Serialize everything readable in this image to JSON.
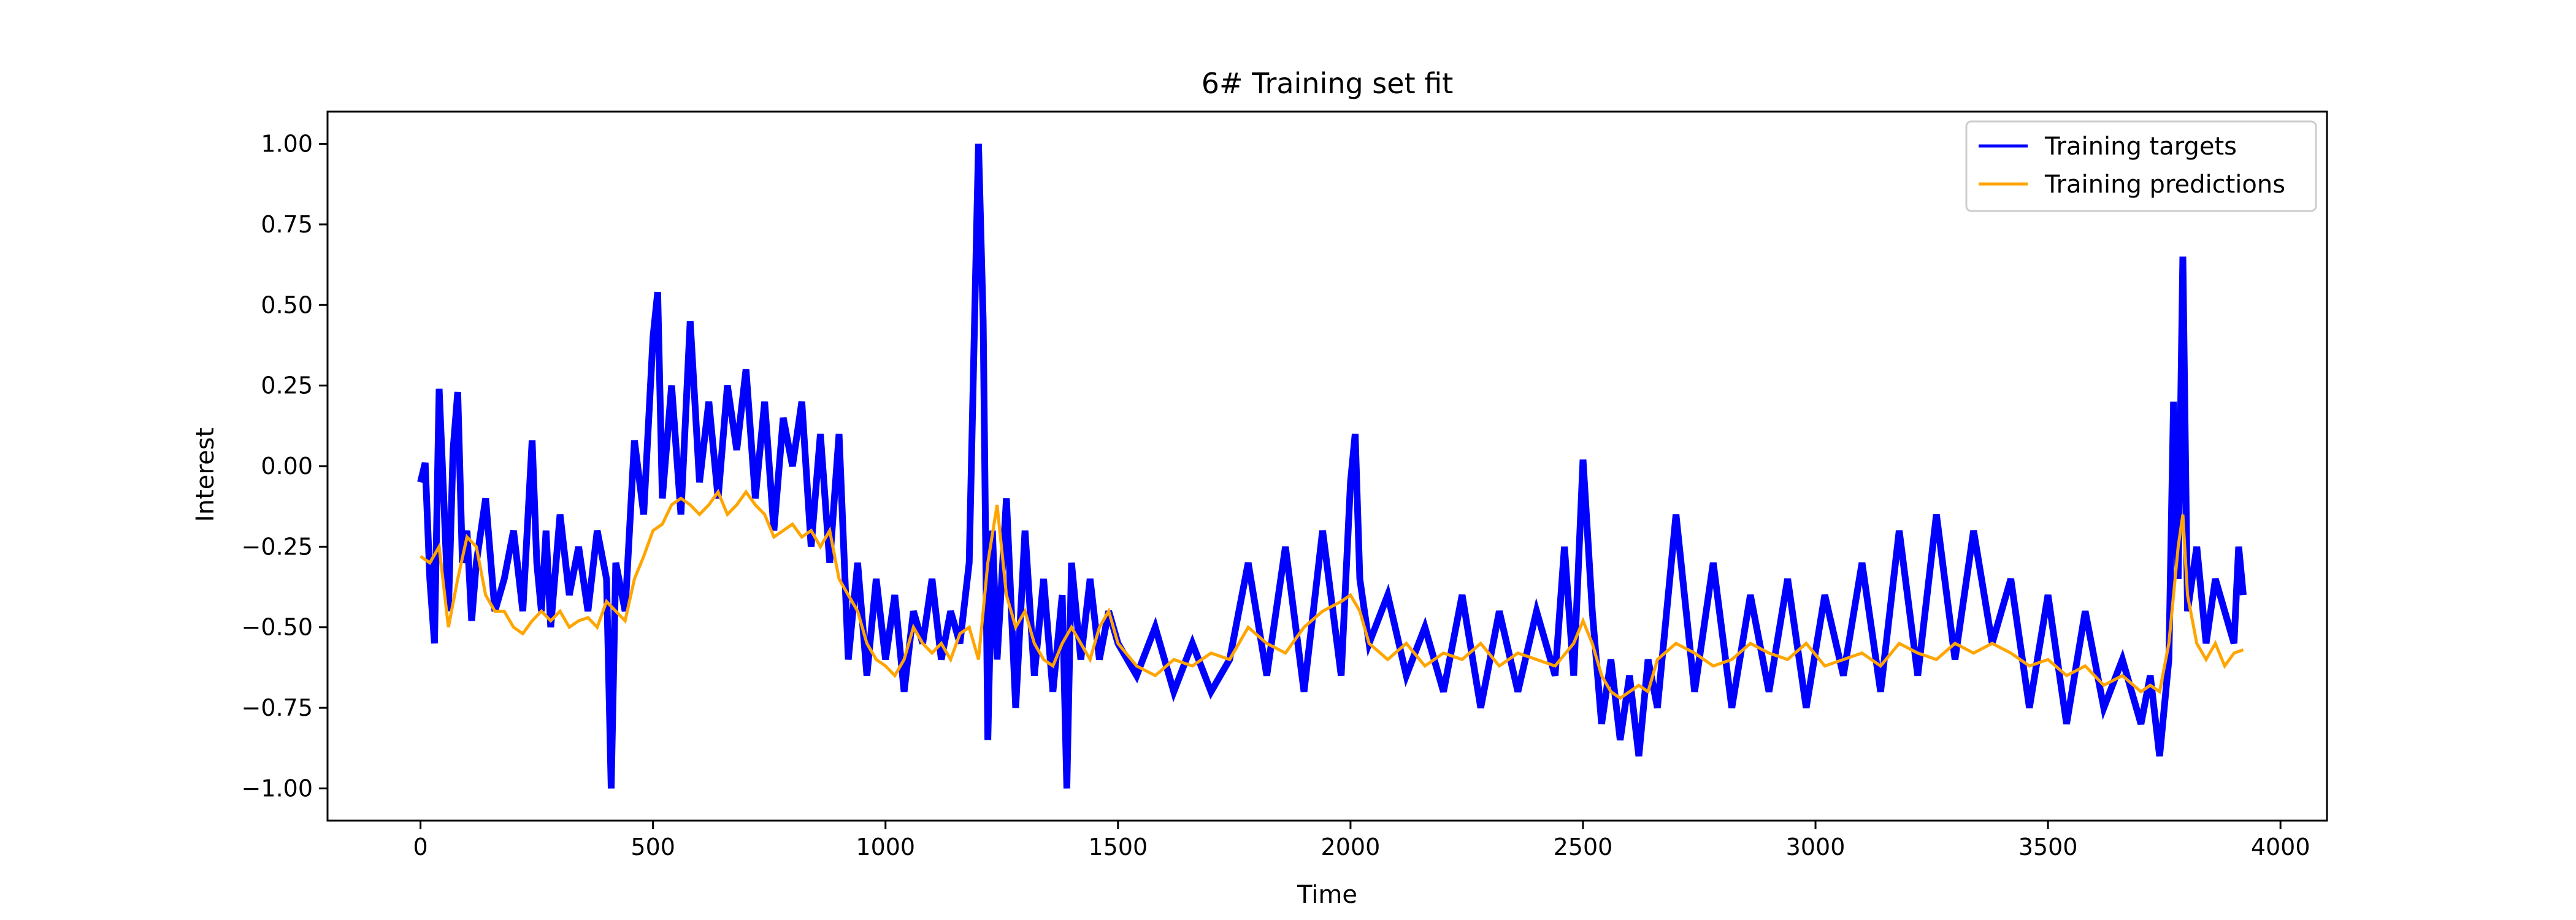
{
  "chart_data": {
    "type": "line",
    "title": "6# Training set fit",
    "xlabel": "Time",
    "ylabel": "Interest",
    "xlim": [
      -200,
      4100
    ],
    "ylim": [
      -1.1,
      1.1
    ],
    "xticks": [
      0,
      500,
      1000,
      1500,
      2000,
      2500,
      3000,
      3500,
      4000
    ],
    "yticks": [
      1.0,
      0.75,
      0.5,
      0.25,
      0.0,
      -0.25,
      -0.5,
      -0.75,
      -1.0
    ],
    "xtick_labels": [
      "0",
      "500",
      "1000",
      "1500",
      "2000",
      "2500",
      "3000",
      "3500",
      "4000"
    ],
    "ytick_labels": [
      "1.00",
      "0.75",
      "0.50",
      "0.25",
      "0.00",
      "−0.25",
      "−0.50",
      "−0.75",
      "−1.00"
    ],
    "grid": false,
    "legend_position": "top-right",
    "series": [
      {
        "name": "Training targets",
        "color": "#0000ff",
        "x": [
          0,
          10,
          20,
          30,
          40,
          50,
          60,
          70,
          80,
          90,
          100,
          110,
          120,
          140,
          160,
          180,
          200,
          220,
          240,
          250,
          260,
          270,
          280,
          300,
          320,
          340,
          360,
          380,
          400,
          410,
          420,
          440,
          460,
          480,
          500,
          510,
          520,
          540,
          560,
          580,
          600,
          620,
          640,
          660,
          680,
          700,
          720,
          740,
          760,
          780,
          800,
          820,
          840,
          860,
          880,
          900,
          920,
          940,
          960,
          980,
          1000,
          1020,
          1040,
          1060,
          1080,
          1100,
          1120,
          1140,
          1160,
          1180,
          1200,
          1210,
          1220,
          1230,
          1240,
          1260,
          1280,
          1300,
          1320,
          1340,
          1360,
          1380,
          1390,
          1400,
          1420,
          1440,
          1460,
          1480,
          1500,
          1540,
          1580,
          1620,
          1660,
          1700,
          1740,
          1780,
          1820,
          1860,
          1900,
          1940,
          1980,
          2000,
          2010,
          2020,
          2040,
          2080,
          2120,
          2160,
          2200,
          2240,
          2280,
          2320,
          2360,
          2400,
          2440,
          2460,
          2480,
          2500,
          2520,
          2540,
          2560,
          2580,
          2600,
          2620,
          2640,
          2660,
          2700,
          2740,
          2780,
          2820,
          2860,
          2900,
          2940,
          2980,
          3020,
          3060,
          3100,
          3140,
          3180,
          3220,
          3260,
          3300,
          3340,
          3380,
          3420,
          3460,
          3500,
          3540,
          3580,
          3620,
          3660,
          3700,
          3720,
          3740,
          3760,
          3770,
          3780,
          3790,
          3800,
          3820,
          3840,
          3860,
          3880,
          3900,
          3910,
          3920
        ],
        "y": [
          -0.05,
          0.01,
          -0.35,
          -0.55,
          0.24,
          -0.1,
          -0.45,
          0.05,
          0.23,
          -0.3,
          -0.2,
          -0.48,
          -0.3,
          -0.1,
          -0.45,
          -0.35,
          -0.2,
          -0.45,
          0.08,
          -0.3,
          -0.45,
          -0.2,
          -0.5,
          -0.15,
          -0.4,
          -0.25,
          -0.45,
          -0.2,
          -0.35,
          -1.0,
          -0.3,
          -0.45,
          0.08,
          -0.15,
          0.4,
          0.54,
          -0.1,
          0.25,
          -0.15,
          0.45,
          -0.05,
          0.2,
          -0.1,
          0.25,
          0.05,
          0.3,
          -0.1,
          0.2,
          -0.2,
          0.15,
          0.0,
          0.2,
          -0.25,
          0.1,
          -0.3,
          0.1,
          -0.6,
          -0.3,
          -0.65,
          -0.35,
          -0.6,
          -0.4,
          -0.7,
          -0.45,
          -0.55,
          -0.35,
          -0.6,
          -0.45,
          -0.55,
          -0.3,
          1.0,
          0.45,
          -0.85,
          -0.2,
          -0.6,
          -0.1,
          -0.75,
          -0.2,
          -0.65,
          -0.35,
          -0.7,
          -0.4,
          -1.0,
          -0.3,
          -0.6,
          -0.35,
          -0.6,
          -0.45,
          -0.55,
          -0.65,
          -0.5,
          -0.7,
          -0.55,
          -0.7,
          -0.6,
          -0.3,
          -0.65,
          -0.25,
          -0.7,
          -0.2,
          -0.65,
          -0.05,
          0.1,
          -0.35,
          -0.55,
          -0.4,
          -0.65,
          -0.5,
          -0.7,
          -0.4,
          -0.75,
          -0.45,
          -0.7,
          -0.45,
          -0.65,
          -0.25,
          -0.65,
          0.02,
          -0.45,
          -0.8,
          -0.6,
          -0.85,
          -0.65,
          -0.9,
          -0.6,
          -0.75,
          -0.15,
          -0.7,
          -0.3,
          -0.75,
          -0.4,
          -0.7,
          -0.35,
          -0.75,
          -0.4,
          -0.65,
          -0.3,
          -0.7,
          -0.2,
          -0.65,
          -0.15,
          -0.6,
          -0.2,
          -0.55,
          -0.35,
          -0.75,
          -0.4,
          -0.8,
          -0.45,
          -0.75,
          -0.6,
          -0.8,
          -0.65,
          -0.9,
          -0.6,
          0.2,
          -0.35,
          0.65,
          -0.45,
          -0.25,
          -0.55,
          -0.35,
          -0.45,
          -0.55,
          -0.25,
          -0.4
        ]
      },
      {
        "name": "Training predictions",
        "color": "#ffa500",
        "x": [
          0,
          20,
          40,
          60,
          80,
          100,
          120,
          140,
          160,
          180,
          200,
          220,
          240,
          260,
          280,
          300,
          320,
          340,
          360,
          380,
          400,
          420,
          440,
          460,
          480,
          500,
          520,
          540,
          560,
          580,
          600,
          620,
          640,
          660,
          680,
          700,
          720,
          740,
          760,
          780,
          800,
          820,
          840,
          860,
          880,
          900,
          920,
          940,
          960,
          980,
          1000,
          1020,
          1040,
          1060,
          1080,
          1100,
          1120,
          1140,
          1160,
          1180,
          1200,
          1220,
          1240,
          1260,
          1280,
          1300,
          1320,
          1340,
          1360,
          1380,
          1400,
          1420,
          1440,
          1460,
          1480,
          1500,
          1540,
          1580,
          1620,
          1660,
          1700,
          1740,
          1780,
          1820,
          1860,
          1900,
          1940,
          1980,
          2000,
          2020,
          2040,
          2080,
          2120,
          2160,
          2200,
          2240,
          2280,
          2320,
          2360,
          2400,
          2440,
          2480,
          2500,
          2520,
          2540,
          2560,
          2580,
          2600,
          2620,
          2640,
          2660,
          2700,
          2740,
          2780,
          2820,
          2860,
          2900,
          2940,
          2980,
          3020,
          3060,
          3100,
          3140,
          3180,
          3220,
          3260,
          3300,
          3340,
          3380,
          3420,
          3460,
          3500,
          3540,
          3580,
          3620,
          3660,
          3700,
          3720,
          3740,
          3760,
          3780,
          3790,
          3800,
          3820,
          3840,
          3860,
          3880,
          3900,
          3920
        ],
        "y": [
          -0.28,
          -0.3,
          -0.25,
          -0.5,
          -0.35,
          -0.22,
          -0.25,
          -0.4,
          -0.45,
          -0.45,
          -0.5,
          -0.52,
          -0.48,
          -0.45,
          -0.48,
          -0.45,
          -0.5,
          -0.48,
          -0.47,
          -0.5,
          -0.42,
          -0.45,
          -0.48,
          -0.35,
          -0.28,
          -0.2,
          -0.18,
          -0.12,
          -0.1,
          -0.12,
          -0.15,
          -0.12,
          -0.08,
          -0.15,
          -0.12,
          -0.08,
          -0.12,
          -0.15,
          -0.22,
          -0.2,
          -0.18,
          -0.22,
          -0.2,
          -0.25,
          -0.2,
          -0.35,
          -0.4,
          -0.45,
          -0.55,
          -0.6,
          -0.62,
          -0.65,
          -0.6,
          -0.5,
          -0.55,
          -0.58,
          -0.55,
          -0.6,
          -0.52,
          -0.5,
          -0.6,
          -0.3,
          -0.12,
          -0.4,
          -0.5,
          -0.45,
          -0.55,
          -0.6,
          -0.62,
          -0.55,
          -0.5,
          -0.55,
          -0.6,
          -0.5,
          -0.45,
          -0.55,
          -0.62,
          -0.65,
          -0.6,
          -0.62,
          -0.58,
          -0.6,
          -0.5,
          -0.55,
          -0.58,
          -0.5,
          -0.45,
          -0.42,
          -0.4,
          -0.45,
          -0.55,
          -0.6,
          -0.55,
          -0.62,
          -0.58,
          -0.6,
          -0.55,
          -0.62,
          -0.58,
          -0.6,
          -0.62,
          -0.55,
          -0.48,
          -0.55,
          -0.65,
          -0.7,
          -0.72,
          -0.7,
          -0.68,
          -0.7,
          -0.6,
          -0.55,
          -0.58,
          -0.62,
          -0.6,
          -0.55,
          -0.58,
          -0.6,
          -0.55,
          -0.62,
          -0.6,
          -0.58,
          -0.62,
          -0.55,
          -0.58,
          -0.6,
          -0.55,
          -0.58,
          -0.55,
          -0.58,
          -0.62,
          -0.6,
          -0.65,
          -0.62,
          -0.68,
          -0.65,
          -0.7,
          -0.68,
          -0.7,
          -0.55,
          -0.25,
          -0.15,
          -0.4,
          -0.55,
          -0.6,
          -0.55,
          -0.62,
          -0.58,
          -0.57
        ]
      }
    ]
  }
}
